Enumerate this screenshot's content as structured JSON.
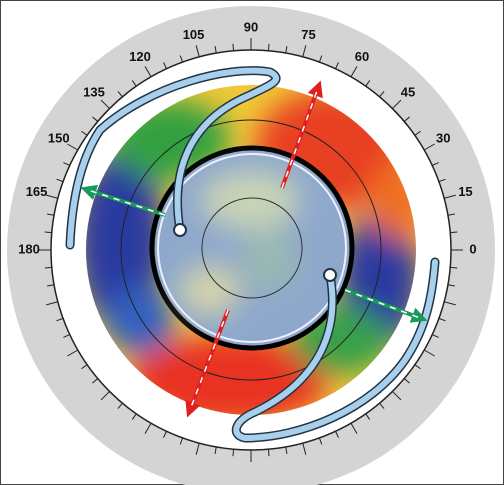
{
  "dial": {
    "labels": [
      "0",
      "15",
      "30",
      "45",
      "60",
      "75",
      "90",
      "105",
      "120",
      "135",
      "150",
      "165",
      "180"
    ]
  }
}
